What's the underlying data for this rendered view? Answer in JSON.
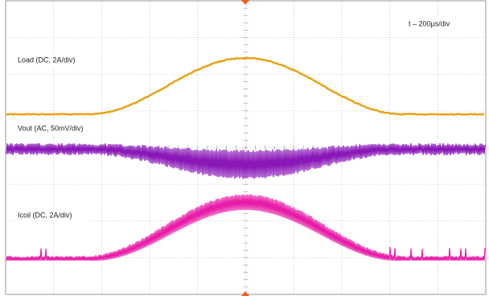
{
  "timebase": "t – 200µs/div",
  "traces": [
    {
      "label": "Load (DC, 2A/div)"
    },
    {
      "label": "Vout (AC, 50mV/div)"
    },
    {
      "label": "Icoil (DC, 2A/div)"
    }
  ]
}
